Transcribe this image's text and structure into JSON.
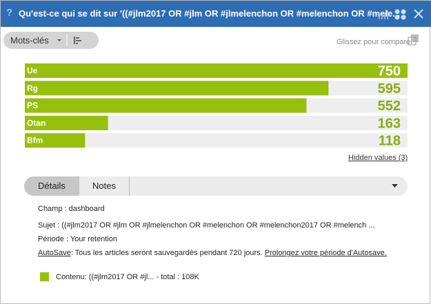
{
  "header": {
    "help": "?",
    "title": "Qu'est-ce qui se dit sur '((#jlm2017 OR #jlm OR #jlmelenchon OR #melenchon OR #mele..."
  },
  "toolbar": {
    "dropdown": "Mots-clés",
    "compare": "Glissez pour comparer"
  },
  "chart_data": {
    "type": "bar",
    "orientation": "horizontal",
    "categories": [
      "Ue",
      "Rg",
      "PS",
      "Otan",
      "Bfm"
    ],
    "values": [
      750,
      595,
      552,
      163,
      118
    ],
    "color": "#97bf0d",
    "value_color": "#8aab12",
    "track_color": "#eeeeee",
    "hidden_values": "Hidden values (3)"
  },
  "tabs": [
    "Détails",
    "Notes"
  ],
  "details": {
    "champ": "Champ : dashboard",
    "sujet": "Sujet : ((#jlm2017 OR #jlm OR #jlmelenchon OR #melenchon OR #melenchon2017 OR #melench ...",
    "periode": "Période : Your retention",
    "autosave_label": "AutoSave",
    "autosave_text": ": Tous les articles seront sauvegardés pendant 720 jours. ",
    "autosave_link": "Prolongez votre période d'Autosave."
  },
  "legend": {
    "label": "Contenu: ((#jlm2017 OR #jl...  - total : 108K"
  }
}
